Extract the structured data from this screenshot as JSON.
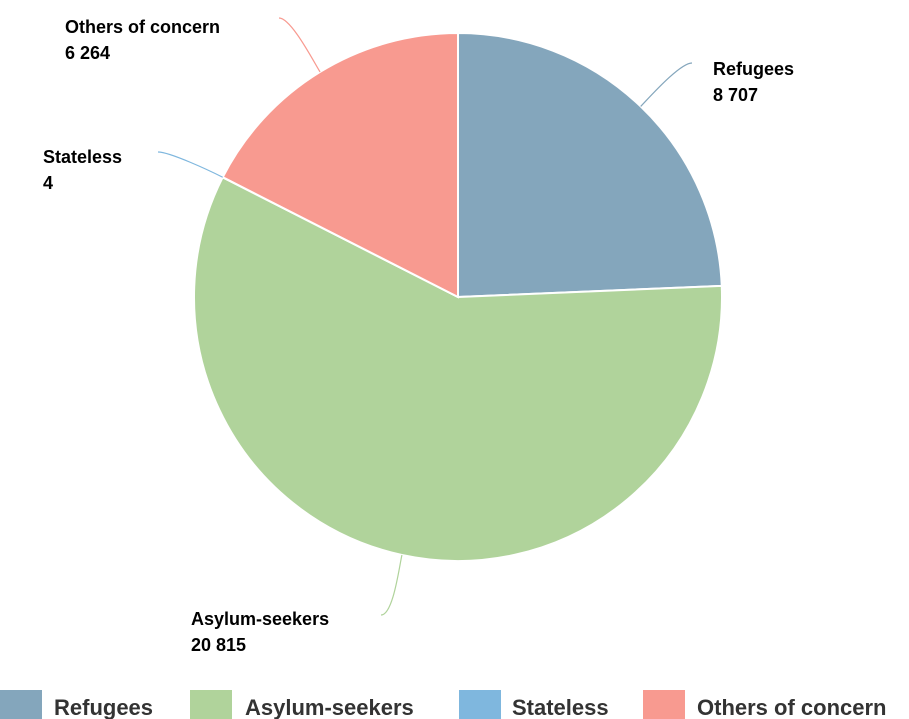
{
  "chart_data": {
    "type": "pie",
    "title": "",
    "legend_position": "bottom",
    "slices": [
      {
        "name": "Refugees",
        "value": 8707,
        "value_label": "8 707",
        "color": "#84a6bc"
      },
      {
        "name": "Asylum-seekers",
        "value": 20815,
        "value_label": "20 815",
        "color": "#b0d39b"
      },
      {
        "name": "Stateless",
        "value": 4,
        "value_label": "4",
        "color": "#7fb7de"
      },
      {
        "name": "Others of concern",
        "value": 6264,
        "value_label": "6 264",
        "color": "#f89a90"
      }
    ]
  }
}
